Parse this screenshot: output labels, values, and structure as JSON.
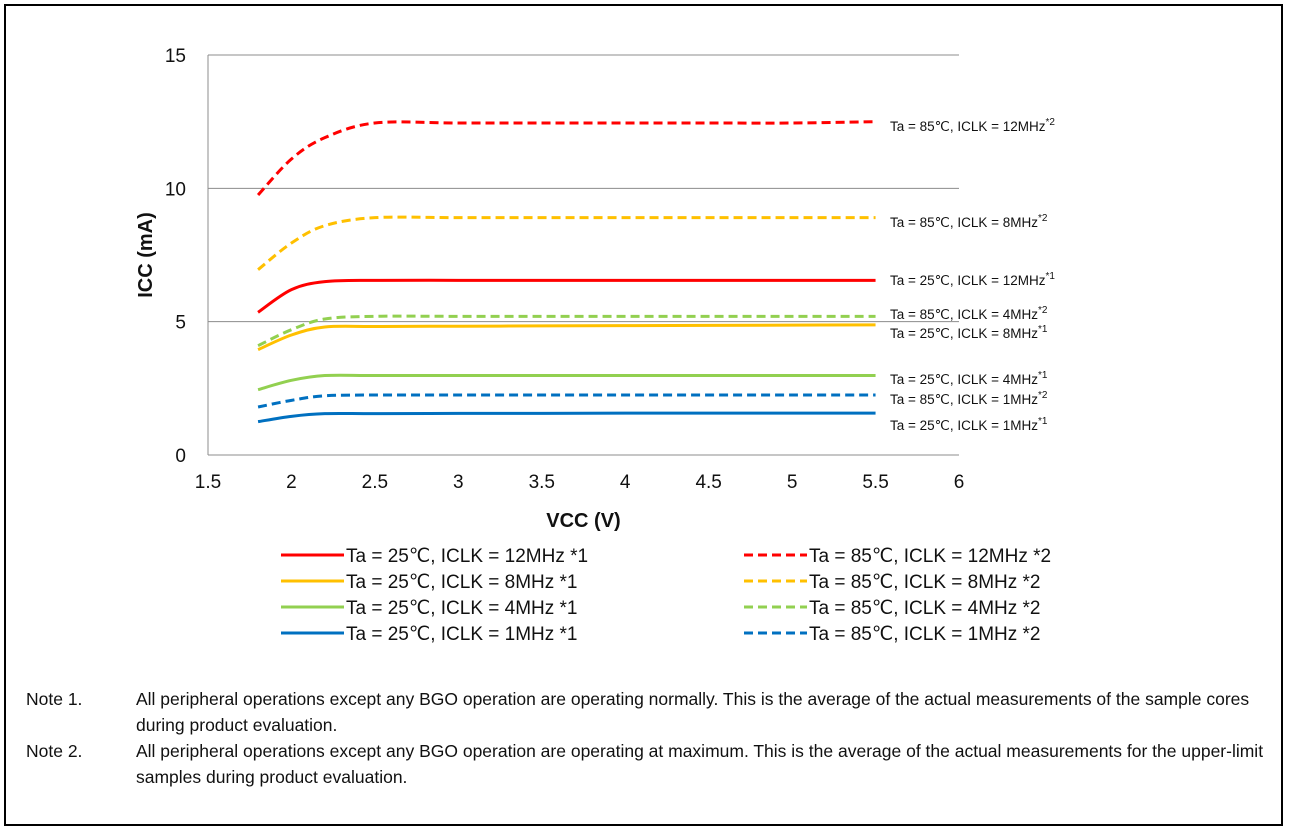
{
  "chart_data": {
    "type": "line",
    "xlabel": "VCC (V)",
    "ylabel": "ICC (mA)",
    "xlim": [
      1.5,
      6
    ],
    "ylim": [
      0,
      15
    ],
    "x_ticks": [
      "1.5",
      "2",
      "2.5",
      "3",
      "3.5",
      "4",
      "4.5",
      "5",
      "5.5",
      "6"
    ],
    "y_ticks": [
      "0",
      "5",
      "10",
      "15"
    ],
    "grid": "horizontal",
    "legend_placement": "bottom",
    "series": [
      {
        "name": "Ta = 25℃, ICLK = 12MHz *1",
        "color": "#ff0000",
        "style": "solid",
        "x": [
          1.8,
          2.0,
          2.2,
          2.5,
          3.0,
          3.5,
          4.0,
          4.5,
          5.0,
          5.5
        ],
        "y": [
          5.35,
          6.2,
          6.5,
          6.55,
          6.55,
          6.55,
          6.55,
          6.55,
          6.55,
          6.55
        ]
      },
      {
        "name": "Ta = 25℃, ICLK = 8MHz *1",
        "color": "#ffc000",
        "style": "solid",
        "x": [
          1.8,
          2.0,
          2.2,
          2.5,
          3.0,
          3.5,
          4.0,
          4.5,
          5.0,
          5.5
        ],
        "y": [
          3.95,
          4.5,
          4.8,
          4.82,
          4.83,
          4.84,
          4.85,
          4.86,
          4.87,
          4.88
        ]
      },
      {
        "name": "Ta = 25℃, ICLK = 4MHz *1",
        "color": "#92d050",
        "style": "solid",
        "x": [
          1.8,
          2.0,
          2.2,
          2.5,
          3.0,
          3.5,
          4.0,
          4.5,
          5.0,
          5.5
        ],
        "y": [
          2.45,
          2.8,
          2.98,
          2.98,
          2.98,
          2.98,
          2.98,
          2.98,
          2.98,
          2.98
        ]
      },
      {
        "name": "Ta = 25℃, ICLK = 1MHz *1",
        "color": "#0070c0",
        "style": "solid",
        "x": [
          1.8,
          2.0,
          2.2,
          2.5,
          3.0,
          3.5,
          4.0,
          4.5,
          5.0,
          5.5
        ],
        "y": [
          1.25,
          1.45,
          1.55,
          1.55,
          1.56,
          1.56,
          1.57,
          1.57,
          1.57,
          1.57
        ]
      },
      {
        "name": "Ta = 85℃, ICLK = 12MHz *2",
        "color": "#ff0000",
        "style": "dashed",
        "x": [
          1.8,
          2.0,
          2.2,
          2.5,
          3.0,
          3.5,
          4.0,
          4.5,
          5.0,
          5.5
        ],
        "y": [
          9.75,
          11.1,
          11.9,
          12.45,
          12.45,
          12.45,
          12.45,
          12.45,
          12.45,
          12.5
        ]
      },
      {
        "name": "Ta = 85℃, ICLK = 8MHz *2",
        "color": "#ffc000",
        "style": "dashed",
        "x": [
          1.8,
          2.0,
          2.2,
          2.5,
          3.0,
          3.5,
          4.0,
          4.5,
          5.0,
          5.5
        ],
        "y": [
          6.95,
          7.95,
          8.6,
          8.9,
          8.9,
          8.9,
          8.9,
          8.9,
          8.9,
          8.9
        ]
      },
      {
        "name": "Ta = 85℃, ICLK = 4MHz *2",
        "color": "#92d050",
        "style": "dashed",
        "x": [
          1.8,
          2.0,
          2.2,
          2.5,
          3.0,
          3.5,
          4.0,
          4.5,
          5.0,
          5.5
        ],
        "y": [
          4.1,
          4.7,
          5.1,
          5.2,
          5.2,
          5.2,
          5.2,
          5.2,
          5.2,
          5.2
        ]
      },
      {
        "name": "Ta = 85℃, ICLK = 1MHz *2",
        "color": "#0070c0",
        "style": "dashed",
        "x": [
          1.8,
          2.0,
          2.2,
          2.5,
          3.0,
          3.5,
          4.0,
          4.5,
          5.0,
          5.5
        ],
        "y": [
          1.8,
          2.05,
          2.22,
          2.25,
          2.25,
          2.25,
          2.25,
          2.25,
          2.25,
          2.25
        ]
      }
    ],
    "annotations": [
      {
        "series": 4,
        "text": "Ta = 85℃, ICLK = 12MHz",
        "sup": "*2"
      },
      {
        "series": 5,
        "text": "Ta = 85℃, ICLK = 8MHz",
        "sup": "*2"
      },
      {
        "series": 0,
        "text": "Ta = 25℃, ICLK = 12MHz",
        "sup": "*1"
      },
      {
        "series": 6,
        "text": "Ta = 85℃, ICLK = 4MHz",
        "sup": "*2"
      },
      {
        "series": 1,
        "text": "Ta = 25℃, ICLK = 8MHz",
        "sup": "*1"
      },
      {
        "series": 2,
        "text": "Ta = 25℃, ICLK = 4MHz",
        "sup": "*1"
      },
      {
        "series": 7,
        "text": "Ta = 85℃, ICLK = 1MHz",
        "sup": "*2"
      },
      {
        "series": 3,
        "text": "Ta = 25℃, ICLK = 1MHz",
        "sup": "*1"
      }
    ]
  },
  "notes": [
    {
      "label": "Note 1.",
      "text": "All peripheral operations except any BGO operation are operating normally. This is the average of the actual measurements of the sample cores during product evaluation."
    },
    {
      "label": "Note 2.",
      "text": "All peripheral operations except any BGO operation are operating at maximum. This is the average of the actual measurements for the upper-limit samples during product evaluation."
    }
  ]
}
